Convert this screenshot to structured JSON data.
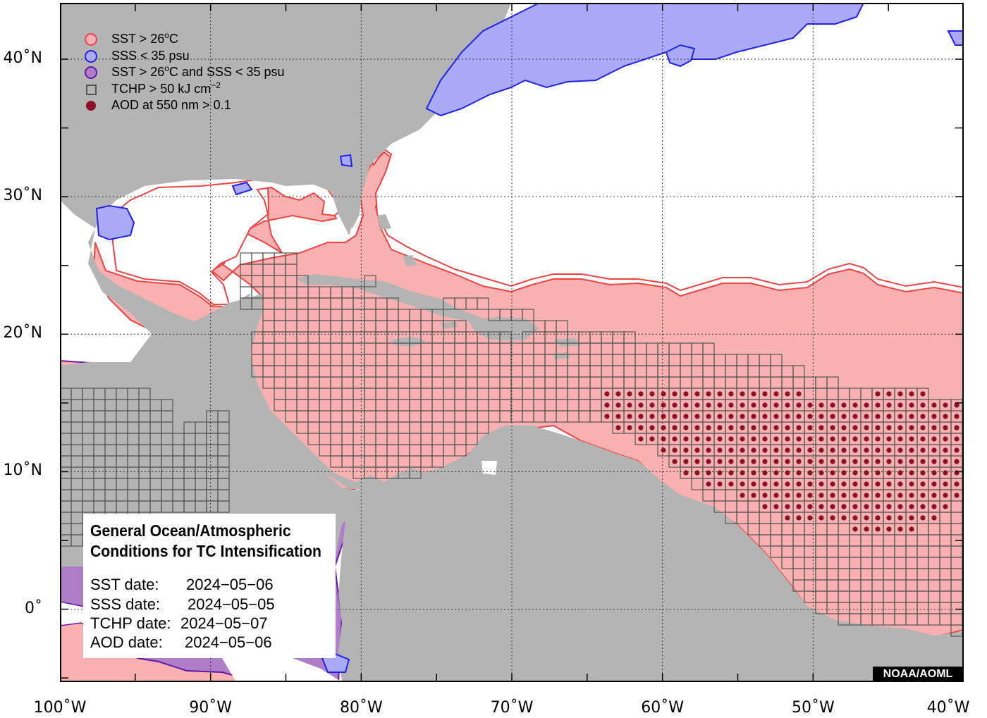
{
  "colors": {
    "land": "#b4b4b4",
    "ocean": "#ffffff",
    "sst_fill": "#f8b0b0",
    "sst_edge": "#ee4444",
    "sss_fill": "#aaaaf8",
    "sss_edge": "#2222ee",
    "both_fill": "#b07ec8",
    "both_edge": "#6618a8",
    "grid_square": "#555555",
    "aod_dot": "#8a1228",
    "credit_bg": "#000000"
  },
  "legend": [
    {
      "symbol": "circle",
      "fill": "#f8b0b0",
      "edge": "#ee4444",
      "text": "SST > 26",
      "superscript": "o",
      "suffix": "C"
    },
    {
      "symbol": "circle",
      "fill": "#aaaaf8",
      "edge": "#2222ee",
      "text": "SSS < 35 psu",
      "superscript": "",
      "suffix": ""
    },
    {
      "symbol": "circle",
      "fill": "#b07ec8",
      "edge": "#6618a8",
      "text": "SST > 26",
      "superscript": "o",
      "suffix": "C and SSS < 35 psu"
    },
    {
      "symbol": "square",
      "fill": "none",
      "edge": "#555555",
      "text": "TCHP > 50 kJ cm",
      "superscript": "−2",
      "suffix": ""
    },
    {
      "symbol": "dot",
      "fill": "#8a1228",
      "edge": "#8a1228",
      "text": "AOD at 550 nm > 0.1",
      "superscript": "",
      "suffix": ""
    }
  ],
  "axes": {
    "lat_ticks": [
      {
        "value": 40,
        "label": "40˚N"
      },
      {
        "value": 30,
        "label": "30˚N"
      },
      {
        "value": 20,
        "label": "20˚N"
      },
      {
        "value": 10,
        "label": "10˚N"
      },
      {
        "value": 0,
        "label": "0˚"
      }
    ],
    "lon_ticks": [
      {
        "value": -100,
        "label": "100˚W"
      },
      {
        "value": -90,
        "label": "90˚W"
      },
      {
        "value": -80,
        "label": "80˚W"
      },
      {
        "value": -70,
        "label": "70˚W"
      },
      {
        "value": -60,
        "label": "60˚W"
      },
      {
        "value": -50,
        "label": "50˚W"
      },
      {
        "value": -40,
        "label": "40˚W"
      }
    ],
    "lon_range": [
      -100,
      -40
    ],
    "lat_range": [
      -5.3,
      44.1
    ],
    "grid": true
  },
  "info_box": {
    "title_line1": "General Ocean/Atmospheric",
    "title_line2": "Conditions for TC Intensification",
    "rows": [
      {
        "label": "SST date:",
        "value": "2024−05−06"
      },
      {
        "label": "SSS date:",
        "value": "2024−05−05"
      },
      {
        "label": "TCHP date:",
        "value": "2024−05−07"
      },
      {
        "label": "AOD date:",
        "value": "2024−05−06"
      }
    ]
  },
  "credit": "NOAA/AOML"
}
